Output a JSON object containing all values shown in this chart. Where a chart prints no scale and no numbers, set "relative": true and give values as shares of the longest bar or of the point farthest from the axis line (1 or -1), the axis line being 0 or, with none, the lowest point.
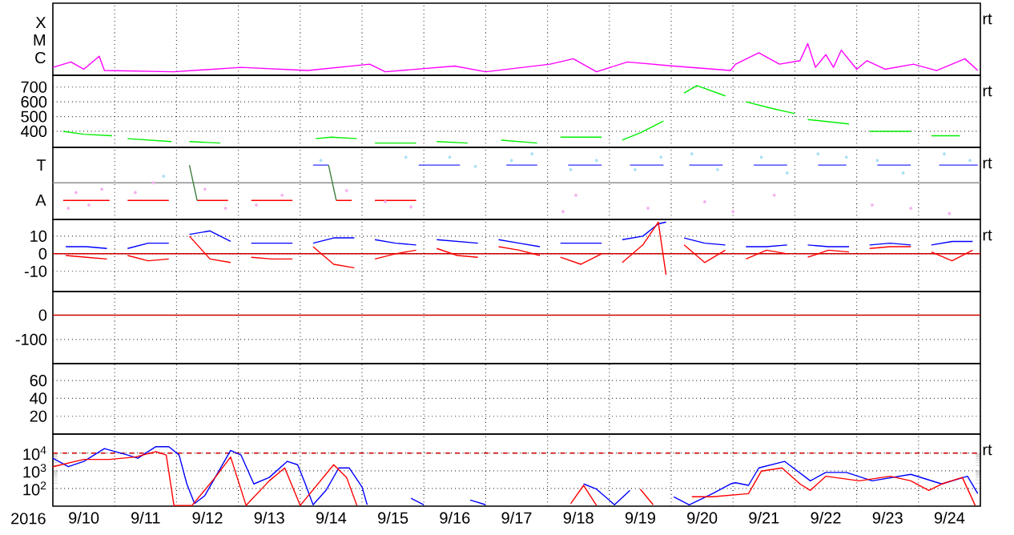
{
  "chart_data": [
    {
      "type": "line",
      "relative": true,
      "xlim": [
        "2016-09-10",
        "2016-09-25"
      ],
      "xticks": [
        {
          "value": "2016-09-11",
          "label": null
        },
        {
          "value": "2016-09-12",
          "label": null
        },
        {
          "value": "2016-09-13",
          "label": null
        },
        {
          "value": "2016-09-14",
          "label": null
        },
        {
          "value": "2016-09-15",
          "label": null
        },
        {
          "value": "2016-09-16",
          "label": null
        },
        {
          "value": "2016-09-17",
          "label": null
        },
        {
          "value": "2016-09-18",
          "label": null
        },
        {
          "value": "2016-09-19",
          "label": null
        },
        {
          "value": "2016-09-20",
          "label": null
        },
        {
          "value": "2016-09-21",
          "label": null
        },
        {
          "value": "2016-09-22",
          "label": null
        },
        {
          "value": "2016-09-23",
          "label": null
        },
        {
          "value": "2016-09-24",
          "label": null
        }
      ],
      "grid": "x",
      "tick_labels": "y",
      "annotations": [
        "rt",
        "X",
        "M",
        "C"
      ],
      "series": [
        {
          "color": "#ff00ff",
          "x": [
            "2016-09-10T00:00",
            "2016-09-10T07:00",
            "2016-09-10T12:00",
            "2016-09-10T18:00",
            "2016-09-10T20:00",
            "2016-09-11T23:00",
            "2016-09-13T01:00",
            "2016-09-14T03:00",
            "2016-09-15T03:00",
            "2016-09-15T09:00",
            "2016-09-16T12:00",
            "2016-09-17T00:00",
            "2016-09-18T01:00",
            "2016-09-18T10:00",
            "2016-09-18T19:00",
            "2016-09-19T07:00",
            "2016-09-20T01:00",
            "2016-09-20T23:00",
            "2016-09-21T01:00",
            "2016-09-21T10:00",
            "2016-09-21T18:00",
            "2016-09-22T02:00",
            "2016-09-22T05:00",
            "2016-09-22T08:00",
            "2016-09-22T12:00",
            "2016-09-22T15:00",
            "2016-09-22T18:00",
            "2016-09-23T00:00",
            "2016-09-23T04:00",
            "2016-09-23T11:00",
            "2016-09-23T22:00",
            "2016-09-24T07:00",
            "2016-09-24T18:00",
            "2016-09-24T23:00"
          ],
          "values": [
            0.25,
            0.42,
            0.19,
            0.6,
            0.15,
            0.11,
            0.25,
            0.15,
            0.35,
            0.11,
            0.29,
            0.11,
            0.35,
            0.52,
            0.11,
            0.42,
            0.29,
            0.15,
            0.35,
            0.71,
            0.35,
            0.46,
            1,
            0.25,
            0.65,
            0.25,
            0.79,
            0.19,
            0.46,
            0.19,
            0.35,
            0.15,
            0.52,
            0.15
          ]
        }
      ]
    },
    {
      "type": "line",
      "ylim": [
        291,
        780
      ],
      "yticks": [
        400,
        500,
        600,
        700
      ],
      "xlim": [
        "2016-09-10",
        "2016-09-25"
      ],
      "xticks": [
        {
          "value": "2016-09-11",
          "label": null
        },
        {
          "value": "2016-09-12",
          "label": null
        },
        {
          "value": "2016-09-13",
          "label": null
        },
        {
          "value": "2016-09-14",
          "label": null
        },
        {
          "value": "2016-09-15",
          "label": null
        },
        {
          "value": "2016-09-16",
          "label": null
        },
        {
          "value": "2016-09-17",
          "label": null
        },
        {
          "value": "2016-09-18",
          "label": null
        },
        {
          "value": "2016-09-19",
          "label": null
        },
        {
          "value": "2016-09-20",
          "label": null
        },
        {
          "value": "2016-09-21",
          "label": null
        },
        {
          "value": "2016-09-22",
          "label": null
        },
        {
          "value": "2016-09-23",
          "label": null
        },
        {
          "value": "2016-09-24",
          "label": null
        }
      ],
      "grid": true,
      "tick_labels": "y",
      "annotations": [
        "rt"
      ],
      "series": [
        {
          "color": "#00ee00",
          "x": [
            "2016-09-10T04:00",
            "2016-09-10T12:00",
            "2016-09-10T23:00",
            "2016-09-11T02:00",
            "2016-09-11T05:00",
            "2016-09-11T22:00",
            "2016-09-12T02:00",
            "2016-09-12T05:00",
            "2016-09-12T17:00",
            "2016-09-13T12:00",
            "2016-09-14T06:00",
            "2016-09-14T12:00",
            "2016-09-14T22:00",
            "2016-09-15T02:00",
            "2016-09-15T05:00",
            "2016-09-15T21:00",
            "2016-09-16T01:00",
            "2016-09-16T05:00",
            "2016-09-16T17:00",
            "2016-09-17T00:00",
            "2016-09-17T06:00",
            "2016-09-17T20:00",
            "2016-09-18T00:00",
            "2016-09-18T05:00",
            "2016-09-18T21:00",
            "2016-09-19T01:00",
            "2016-09-19T05:00",
            "2016-09-19T12:00",
            "2016-09-19T21:00",
            "2016-09-20T01:00",
            "2016-09-20T05:00",
            "2016-09-20T10:00",
            "2016-09-20T21:00",
            "2016-09-21T01:00",
            "2016-09-21T05:00",
            "2016-09-21T14:00",
            "2016-09-22T00:00",
            "2016-09-22T02:00",
            "2016-09-22T05:00",
            "2016-09-22T21:00",
            "2016-09-23T01:00",
            "2016-09-23T05:00",
            "2016-09-23T21:00",
            "2016-09-24T01:00",
            "2016-09-24T05:00",
            "2016-09-24T16:00"
          ],
          "values": [
            400,
            380,
            370,
            null,
            350,
            330,
            null,
            330,
            320,
            null,
            350,
            360,
            350,
            null,
            320,
            320,
            null,
            330,
            320,
            null,
            340,
            320,
            null,
            360,
            360,
            null,
            340,
            390,
            470,
            null,
            660,
            710,
            640,
            null,
            600,
            560,
            520,
            null,
            480,
            450,
            null,
            400,
            400,
            null,
            370,
            370
          ]
        }
      ]
    },
    {
      "type": "line",
      "relative": true,
      "xlim": [
        "2016-09-10",
        "2016-09-25"
      ],
      "xticks": [
        {
          "value": "2016-09-11",
          "label": null
        },
        {
          "value": "2016-09-12",
          "label": null
        },
        {
          "value": "2016-09-13",
          "label": null
        },
        {
          "value": "2016-09-14",
          "label": null
        },
        {
          "value": "2016-09-15",
          "label": null
        },
        {
          "value": "2016-09-16",
          "label": null
        },
        {
          "value": "2016-09-17",
          "label": null
        },
        {
          "value": "2016-09-18",
          "label": null
        },
        {
          "value": "2016-09-19",
          "label": null
        },
        {
          "value": "2016-09-20",
          "label": null
        },
        {
          "value": "2016-09-21",
          "label": null
        },
        {
          "value": "2016-09-22",
          "label": null
        },
        {
          "value": "2016-09-23",
          "label": null
        },
        {
          "value": "2016-09-24",
          "label": null
        }
      ],
      "grid": "x",
      "tick_labels": "y",
      "annotations": [
        "rt",
        "T",
        "A"
      ],
      "ref_lines": [
        {
          "axis": "y",
          "value": 0.56,
          "color": "#909090"
        }
      ],
      "series": [
        {
          "type": "scatter",
          "marker": "circle",
          "color": "#f5b0ee",
          "x": [
            "2016-09-10T06:00",
            "2016-09-10T09:00",
            "2016-09-10T14:00",
            "2016-09-10T19:00",
            "2016-09-11T08:00",
            "2016-09-11T15:00",
            "2016-09-12T11:00",
            "2016-09-12T19:00",
            "2016-09-13T07:00",
            "2016-09-13T17:00",
            "2016-09-14T18:00",
            "2016-09-15T09:00",
            "2016-09-15T19:00",
            "2016-09-18T06:00",
            "2016-09-18T11:00",
            "2016-09-19T15:00",
            "2016-09-20T13:00",
            "2016-09-21T00:00",
            "2016-09-21T16:00",
            "2016-09-23T06:00",
            "2016-09-23T21:00",
            "2016-09-24T12:00"
          ],
          "values": [
            0.17,
            0.41,
            0.22,
            0.46,
            0.41,
            0.56,
            0.46,
            0.17,
            0.22,
            0.37,
            0.44,
            0.27,
            0.19,
            0.12,
            0.37,
            0.17,
            0.27,
            0.12,
            0.37,
            0.22,
            0.17,
            0.09
          ]
        },
        {
          "type": "scatter",
          "marker": "circle",
          "color": "#a8e0f5",
          "x": [
            "2016-09-11T19:00",
            "2016-09-14T08:00",
            "2016-09-15T17:00",
            "2016-09-16T10:00",
            "2016-09-16T20:00",
            "2016-09-17T10:00",
            "2016-09-17T18:00",
            "2016-09-18T09:00",
            "2016-09-18T19:00",
            "2016-09-19T10:00",
            "2016-09-19T20:00",
            "2016-09-20T08:00",
            "2016-09-20T18:00",
            "2016-09-21T11:00",
            "2016-09-21T21:00",
            "2016-09-22T09:00",
            "2016-09-22T20:00",
            "2016-09-23T08:00",
            "2016-09-23T18:00",
            "2016-09-24T10:00",
            "2016-09-24T20:00"
          ],
          "values": [
            0.66,
            0.9,
            0.95,
            0.95,
            0.81,
            0.9,
            1,
            0.76,
            0.9,
            0.76,
            0.95,
            1,
            0.76,
            0.95,
            0.71,
            1,
            0.95,
            0.9,
            0.71,
            1,
            0.9
          ]
        },
        {
          "color": "#ff0000",
          "x": [
            "2016-09-10T04:00",
            "2016-09-10T22:00",
            "2016-09-11T01:00",
            "2016-09-11T05:00",
            "2016-09-11T21:00",
            "2016-09-12T04:00",
            "2016-09-12T08:00",
            "2016-09-12T20:00",
            "2016-09-13T02:00",
            "2016-09-13T05:00",
            "2016-09-13T21:00",
            "2016-09-14T08:00",
            "2016-09-14T14:00",
            "2016-09-14T20:00",
            "2016-09-15T02:00",
            "2016-09-15T05:00",
            "2016-09-15T21:00"
          ],
          "values": [
            0.29,
            0.29,
            null,
            0.29,
            0.29,
            null,
            0.29,
            0.29,
            null,
            0.29,
            0.29,
            null,
            0.29,
            0.29,
            null,
            0.29,
            0.29
          ]
        },
        {
          "color": "#3030ff",
          "x": [
            "2016-09-14T05:00",
            "2016-09-14T11:00",
            "2016-09-14T18:00",
            "2016-09-15T22:00",
            "2016-09-16T14:00",
            "2016-09-17T02:00",
            "2016-09-17T08:00",
            "2016-09-17T20:00",
            "2016-09-18T02:00",
            "2016-09-18T08:00",
            "2016-09-18T21:00",
            "2016-09-19T02:00",
            "2016-09-19T08:00",
            "2016-09-19T21:00",
            "2016-09-20T02:00",
            "2016-09-20T07:00",
            "2016-09-20T20:00",
            "2016-09-21T02:00",
            "2016-09-21T08:00",
            "2016-09-21T21:00",
            "2016-09-22T02:00",
            "2016-09-22T09:00",
            "2016-09-22T20:00",
            "2016-09-23T02:00",
            "2016-09-23T08:00",
            "2016-09-23T21:00",
            "2016-09-24T02:00",
            "2016-09-24T08:00",
            "2016-09-24T23:00"
          ],
          "values": [
            0.83,
            0.83,
            null,
            0.83,
            0.83,
            null,
            0.83,
            0.83,
            null,
            0.83,
            0.83,
            null,
            0.83,
            0.83,
            null,
            0.83,
            0.83,
            null,
            0.83,
            0.83,
            null,
            0.83,
            0.83,
            null,
            0.83,
            0.83,
            null,
            0.83,
            0.83
          ]
        },
        {
          "color": "#408040",
          "x": [
            "2016-09-12T05:00",
            "2016-09-12T08:00",
            "2016-09-13T00:00",
            "2016-09-14T11:00",
            "2016-09-14T14:00"
          ],
          "values": [
            0.83,
            0.29,
            null,
            0.83,
            0.29
          ]
        }
      ]
    },
    {
      "type": "line",
      "ylim": [
        -21.5,
        19.5
      ],
      "yticks": [
        -10,
        0,
        10
      ],
      "xlim": [
        "2016-09-10",
        "2016-09-25"
      ],
      "xticks": [
        {
          "value": "2016-09-11",
          "label": null
        },
        {
          "value": "2016-09-12",
          "label": null
        },
        {
          "value": "2016-09-13",
          "label": null
        },
        {
          "value": "2016-09-14",
          "label": null
        },
        {
          "value": "2016-09-15",
          "label": null
        },
        {
          "value": "2016-09-16",
          "label": null
        },
        {
          "value": "2016-09-17",
          "label": null
        },
        {
          "value": "2016-09-18",
          "label": null
        },
        {
          "value": "2016-09-19",
          "label": null
        },
        {
          "value": "2016-09-20",
          "label": null
        },
        {
          "value": "2016-09-21",
          "label": null
        },
        {
          "value": "2016-09-22",
          "label": null
        },
        {
          "value": "2016-09-23",
          "label": null
        },
        {
          "value": "2016-09-24",
          "label": null
        }
      ],
      "grid": true,
      "tick_labels": "y",
      "annotations": [
        "rt"
      ],
      "ref_lines": [
        {
          "axis": "y",
          "value": 0,
          "color": "#cc0000"
        }
      ],
      "x": [
        "2016-09-10T05:00",
        "2016-09-10T13:00",
        "2016-09-10T21:00",
        "2016-09-11T01:00",
        "2016-09-11T05:00",
        "2016-09-11T13:00",
        "2016-09-11T21:00",
        "2016-09-12T01:00",
        "2016-09-12T05:00",
        "2016-09-12T13:00",
        "2016-09-12T21:00",
        "2016-09-13T01:00",
        "2016-09-13T05:00",
        "2016-09-13T13:00",
        "2016-09-13T21:00",
        "2016-09-14T01:00",
        "2016-09-14T05:00",
        "2016-09-14T13:00",
        "2016-09-14T21:00",
        "2016-09-15T01:00",
        "2016-09-15T05:00",
        "2016-09-15T13:00",
        "2016-09-15T21:00",
        "2016-09-16T01:00",
        "2016-09-16T05:00",
        "2016-09-16T13:00",
        "2016-09-16T21:00",
        "2016-09-17T01:00",
        "2016-09-17T05:00",
        "2016-09-17T13:00",
        "2016-09-17T21:00",
        "2016-09-18T01:00",
        "2016-09-18T05:00",
        "2016-09-18T13:00",
        "2016-09-18T21:00",
        "2016-09-19T01:00",
        "2016-09-19T05:00",
        "2016-09-19T13:00",
        "2016-09-19T19:00",
        "2016-09-19T22:00",
        "2016-09-20T01:00",
        "2016-09-20T05:00",
        "2016-09-20T13:00",
        "2016-09-20T21:00",
        "2016-09-21T01:00",
        "2016-09-21T05:00",
        "2016-09-21T13:00",
        "2016-09-21T21:00",
        "2016-09-22T01:00",
        "2016-09-22T05:00",
        "2016-09-22T13:00",
        "2016-09-22T21:00",
        "2016-09-23T01:00",
        "2016-09-23T05:00",
        "2016-09-23T13:00",
        "2016-09-23T21:00",
        "2016-09-24T01:00",
        "2016-09-24T05:00",
        "2016-09-24T13:00",
        "2016-09-24T21:00"
      ],
      "series": [
        {
          "color": "#0000ff",
          "values": [
            4,
            4,
            3,
            null,
            3,
            6,
            6,
            null,
            11,
            13,
            7,
            null,
            6,
            6,
            6,
            null,
            6,
            9,
            9,
            null,
            8,
            6,
            5,
            null,
            8,
            7,
            6,
            null,
            8,
            6,
            4,
            null,
            6,
            6,
            6,
            null,
            8,
            10,
            17,
            18,
            null,
            9,
            6,
            5,
            null,
            4,
            4,
            5,
            null,
            5,
            4,
            4,
            null,
            5,
            6,
            5,
            null,
            5,
            7,
            7
          ]
        },
        {
          "color": "#ff0000",
          "values": [
            -1,
            -2,
            -3,
            null,
            -1,
            -4,
            -3,
            null,
            10,
            -3,
            -5,
            null,
            -2,
            -3,
            -3,
            null,
            4,
            -6,
            -8,
            null,
            -3,
            0,
            2,
            null,
            3,
            -1,
            -2,
            null,
            4,
            2,
            -1,
            null,
            -2,
            -6,
            0,
            null,
            -5,
            5,
            18,
            -12,
            null,
            5,
            -5,
            2,
            null,
            -3,
            2,
            0,
            null,
            -2,
            2,
            1,
            null,
            3,
            4,
            4,
            null,
            1,
            -4,
            2
          ]
        }
      ]
    },
    {
      "type": "line",
      "ylim": [
        -199,
        97
      ],
      "yticks": [
        -100,
        0
      ],
      "xlim": [
        "2016-09-10",
        "2016-09-25"
      ],
      "xticks": [
        {
          "value": "2016-09-11",
          "label": null
        },
        {
          "value": "2016-09-12",
          "label": null
        },
        {
          "value": "2016-09-13",
          "label": null
        },
        {
          "value": "2016-09-14",
          "label": null
        },
        {
          "value": "2016-09-15",
          "label": null
        },
        {
          "value": "2016-09-16",
          "label": null
        },
        {
          "value": "2016-09-17",
          "label": null
        },
        {
          "value": "2016-09-18",
          "label": null
        },
        {
          "value": "2016-09-19",
          "label": null
        },
        {
          "value": "2016-09-20",
          "label": null
        },
        {
          "value": "2016-09-21",
          "label": null
        },
        {
          "value": "2016-09-22",
          "label": null
        },
        {
          "value": "2016-09-23",
          "label": null
        },
        {
          "value": "2016-09-24",
          "label": null
        }
      ],
      "grid": true,
      "tick_labels": "y",
      "ref_lines": [
        {
          "axis": "y",
          "value": 0,
          "color": "#cc0000"
        }
      ]
    },
    {
      "type": "line",
      "ylim": [
        0,
        79
      ],
      "yticks": [
        20,
        40,
        60
      ],
      "xlim": [
        "2016-09-10",
        "2016-09-25"
      ],
      "xticks": [
        {
          "value": "2016-09-11",
          "label": null
        },
        {
          "value": "2016-09-12",
          "label": null
        },
        {
          "value": "2016-09-13",
          "label": null
        },
        {
          "value": "2016-09-14",
          "label": null
        },
        {
          "value": "2016-09-15",
          "label": null
        },
        {
          "value": "2016-09-16",
          "label": null
        },
        {
          "value": "2016-09-17",
          "label": null
        },
        {
          "value": "2016-09-18",
          "label": null
        },
        {
          "value": "2016-09-19",
          "label": null
        },
        {
          "value": "2016-09-20",
          "label": null
        },
        {
          "value": "2016-09-21",
          "label": null
        },
        {
          "value": "2016-09-22",
          "label": null
        },
        {
          "value": "2016-09-23",
          "label": null
        },
        {
          "value": "2016-09-24",
          "label": null
        }
      ],
      "grid": true,
      "tick_labels": "y"
    },
    {
      "type": "line",
      "log": "y",
      "ylim": [
        10,
        118000
      ],
      "yticks": [
        {
          "value": 100,
          "label": "10$^{2}$"
        },
        {
          "value": 1000,
          "label": "10$^{3}$"
        },
        {
          "value": 10000,
          "label": "10$^{4}$"
        }
      ],
      "xlim": [
        "2016-09-10",
        "2016-09-25"
      ],
      "xticks": [
        {
          "value": "2016-09-10T12:00",
          "label": "9/10"
        },
        {
          "value": "2016-09-11",
          "label": null
        },
        {
          "value": "2016-09-11T12:00",
          "label": "9/11"
        },
        {
          "value": "2016-09-12",
          "label": null
        },
        {
          "value": "2016-09-12T12:00",
          "label": "9/12"
        },
        {
          "value": "2016-09-13",
          "label": null
        },
        {
          "value": "2016-09-13T12:00",
          "label": "9/13"
        },
        {
          "value": "2016-09-14",
          "label": null
        },
        {
          "value": "2016-09-14T12:00",
          "label": "9/14"
        },
        {
          "value": "2016-09-15",
          "label": null
        },
        {
          "value": "2016-09-15T12:00",
          "label": "9/15"
        },
        {
          "value": "2016-09-16",
          "label": null
        },
        {
          "value": "2016-09-16T12:00",
          "label": "9/16"
        },
        {
          "value": "2016-09-17",
          "label": null
        },
        {
          "value": "2016-09-17T12:00",
          "label": "9/17"
        },
        {
          "value": "2016-09-18",
          "label": null
        },
        {
          "value": "2016-09-18T12:00",
          "label": "9/18"
        },
        {
          "value": "2016-09-19",
          "label": null
        },
        {
          "value": "2016-09-19T12:00",
          "label": "9/19"
        },
        {
          "value": "2016-09-20",
          "label": null
        },
        {
          "value": "2016-09-20T12:00",
          "label": "9/20"
        },
        {
          "value": "2016-09-21",
          "label": null
        },
        {
          "value": "2016-09-21T12:00",
          "label": "9/21"
        },
        {
          "value": "2016-09-22",
          "label": null
        },
        {
          "value": "2016-09-22T12:00",
          "label": "9/22"
        },
        {
          "value": "2016-09-23",
          "label": null
        },
        {
          "value": "2016-09-23T12:00",
          "label": "9/23"
        },
        {
          "value": "2016-09-24",
          "label": null
        },
        {
          "value": "2016-09-24T12:00",
          "label": "9/24"
        }
      ],
      "grid": true,
      "xlabel": "2016",
      "annotations": [
        "rt"
      ],
      "ref_lines": [
        {
          "axis": "y",
          "value": 10000,
          "color": "#cc0000",
          "line_style": "dashed"
        }
      ],
      "series": [
        {
          "color": "#0000ff",
          "x": [
            "2016-09-10T00:00",
            "2016-09-10T06:00",
            "2016-09-10T12:00",
            "2016-09-10T20:00",
            "2016-09-11T05:00",
            "2016-09-11T09:00",
            "2016-09-11T16:00",
            "2016-09-11T21:00",
            "2016-09-12T01:00",
            "2016-09-12T04:00",
            "2016-09-12T07:00",
            "2016-09-12T11:00",
            "2016-09-12T15:00",
            "2016-09-12T21:00",
            "2016-09-13T01:00",
            "2016-09-13T06:00",
            "2016-09-13T12:00",
            "2016-09-13T19:00",
            "2016-09-13T23:00",
            "2016-09-14T02:00",
            "2016-09-14T05:00",
            "2016-09-14T10:00",
            "2016-09-14T15:00",
            "2016-09-14T19:00",
            "2016-09-15T00:00",
            "2016-09-15T02:00",
            "2016-09-15T10:00",
            "2016-09-15T19:00",
            "2016-09-16T00:00",
            "2016-09-16T09:00",
            "2016-09-16T18:00",
            "2016-09-17T00:00",
            "2016-09-17T12:00",
            "2016-09-17T20:00",
            "2016-09-17T22:00",
            "2016-09-18T01:00",
            "2016-09-18T06:00",
            "2016-09-18T14:00",
            "2016-09-18T19:00",
            "2016-09-19T02:00",
            "2016-09-19T08:00",
            "2016-09-19T18:00",
            "2016-09-20T01:00",
            "2016-09-20T07:00",
            "2016-09-20T16:00",
            "2016-09-20T23:00",
            "2016-09-21T01:00",
            "2016-09-21T06:00",
            "2016-09-21T10:00",
            "2016-09-21T20:00",
            "2016-09-22T06:00",
            "2016-09-22T12:00",
            "2016-09-22T20:00",
            "2016-09-23T06:00",
            "2016-09-23T21:00",
            "2016-09-24T09:00",
            "2016-09-24T19:00",
            "2016-09-24T23:00"
          ],
          "values": [
            5100,
            1700,
            3400,
            18000,
            7800,
            5100,
            23000,
            23000,
            7800,
            180,
            14,
            40,
            420,
            14000,
            7800,
            180,
            420,
            3400,
            2200,
            180,
            12,
            78,
            1450,
            1450,
            120,
            12,
            null,
            28,
            12,
            null,
            22,
            12,
            null,
            null,
            null,
            null,
            null,
            180,
            92,
            12,
            78,
            null,
            34,
            12,
            51,
            180,
            210,
            150,
            1450,
            3400,
            270,
            810,
            810,
            270,
            630,
            180,
            490,
            51
          ]
        },
        {
          "color": "#ff0000",
          "x": [
            "2016-09-10T00:00",
            "2016-09-10T12:00",
            "2016-09-10T22:00",
            "2016-09-11T08:00",
            "2016-09-11T16:00",
            "2016-09-11T20:00",
            "2016-09-11T23:00",
            "2016-09-12T06:00",
            "2016-09-12T15:00",
            "2016-09-12T21:00",
            "2016-09-13T03:00",
            "2016-09-13T12:00",
            "2016-09-13T18:00",
            "2016-09-14T00:00",
            "2016-09-14T13:00",
            "2016-09-14T18:00",
            "2016-09-14T22:00",
            "2016-09-16T12:00",
            "2016-09-18T09:00",
            "2016-09-18T14:00",
            "2016-09-18T19:00",
            "2016-09-19T06:00",
            "2016-09-19T12:00",
            "2016-09-19T17:00",
            "2016-09-20T02:00",
            "2016-09-20T08:00",
            "2016-09-20T16:00",
            "2016-09-21T06:00",
            "2016-09-21T11:00",
            "2016-09-21T19:00",
            "2016-09-22T02:00",
            "2016-09-22T06:00",
            "2016-09-22T12:00",
            "2016-09-23T01:00",
            "2016-09-23T13:00",
            "2016-09-23T21:00",
            "2016-09-24T04:00",
            "2016-09-24T09:00",
            "2016-09-24T17:00",
            "2016-09-24T22:00"
          ],
          "values": [
            1700,
            4400,
            4400,
            6000,
            12000,
            7800,
            11,
            11,
            420,
            6000,
            11,
            270,
            1450,
            11,
            2200,
            420,
            11,
            null,
            14,
            150,
            11,
            null,
            92,
            12,
            null,
            34,
            34,
            51,
            960,
            1450,
            180,
            78,
            490,
            270,
            490,
            270,
            78,
            180,
            420,
            11
          ]
        }
      ]
    }
  ]
}
